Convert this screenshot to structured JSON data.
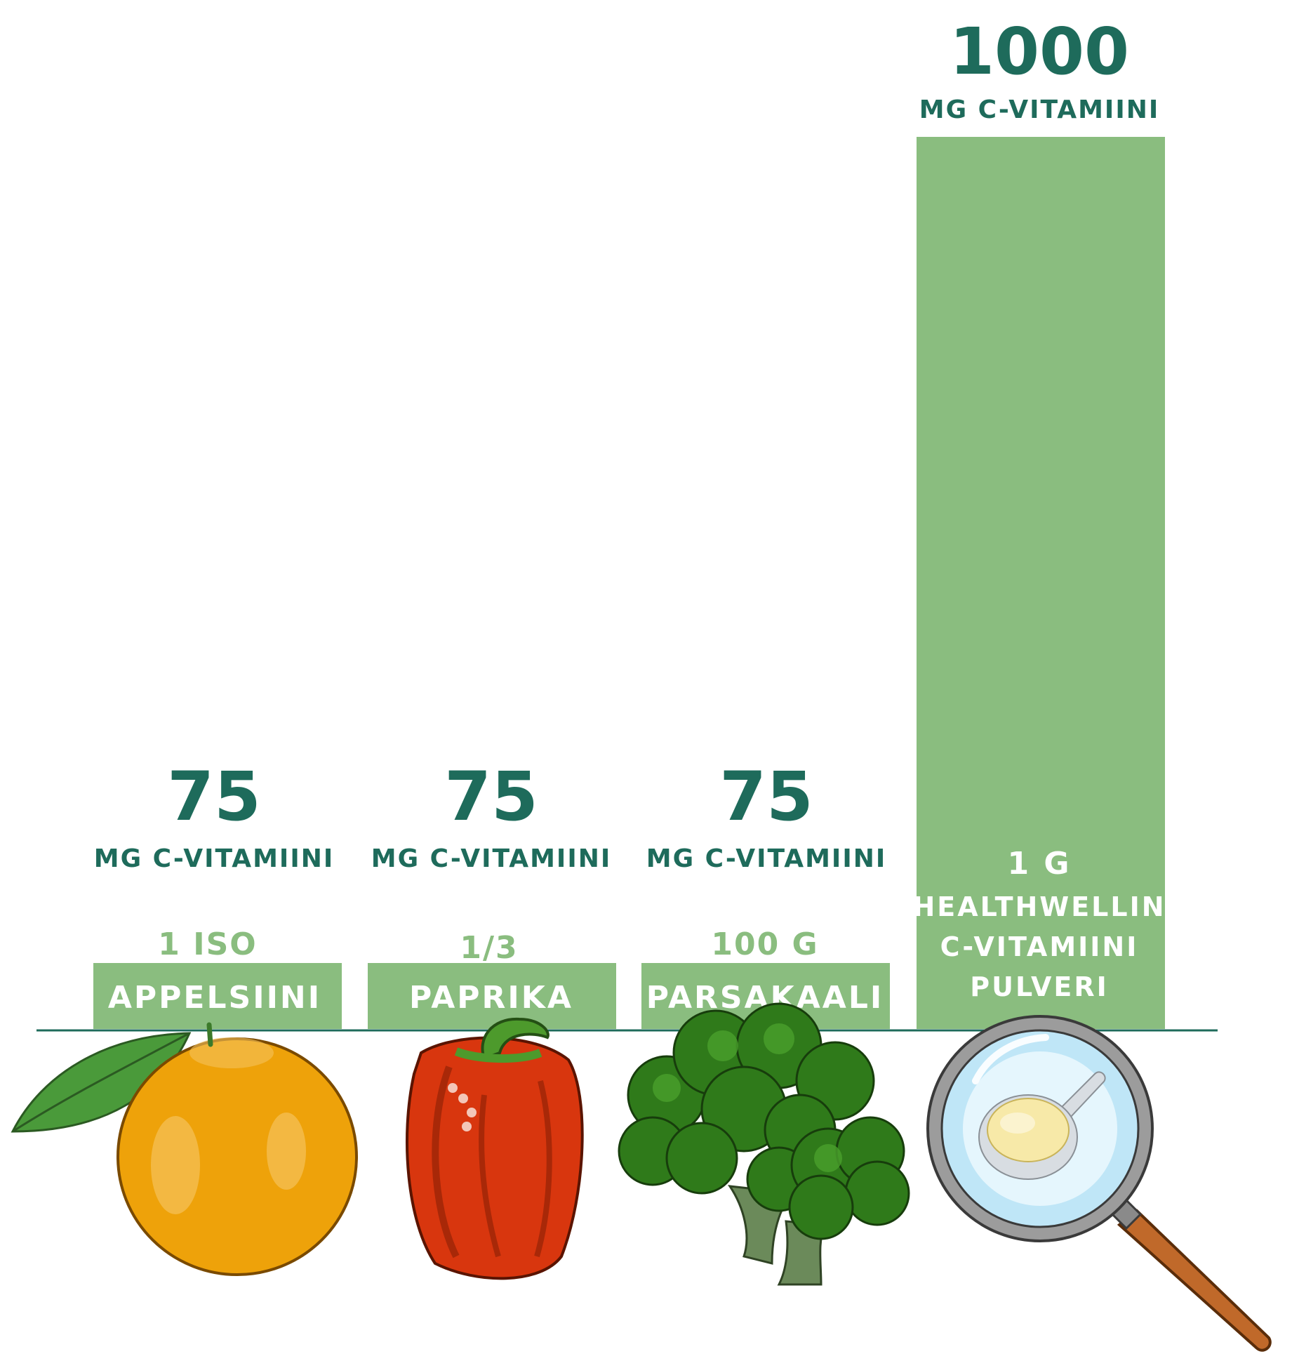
{
  "chart_data": {
    "type": "bar",
    "categories": [
      "APPELSIINI",
      "PAPRIKA",
      "PARSAKAALI",
      "HEALTHWELLIN C-VITAMIINI PULVERI"
    ],
    "series": [
      {
        "values": [
          75,
          75,
          75,
          1000
        ]
      }
    ],
    "value_labels": [
      "75",
      "75",
      "75",
      "1000"
    ],
    "unit_label": "MG C-VITAMIINI",
    "quantities": [
      "1 ISO",
      "1/3",
      "100 G",
      "1 G"
    ],
    "bar_label_lines": [
      "HEALTHWELLIN",
      "C-VITAMIINI",
      "PULVERI"
    ],
    "ylim": [
      0,
      1000
    ],
    "grid": false,
    "colors": {
      "bar": "#8abd7f",
      "text_dark": "#1e6b5b",
      "baseline": "#1e6b5b"
    },
    "icons": [
      "orange-icon",
      "red-pepper-icon",
      "broccoli-icon",
      "magnifier-powder-icon"
    ]
  }
}
